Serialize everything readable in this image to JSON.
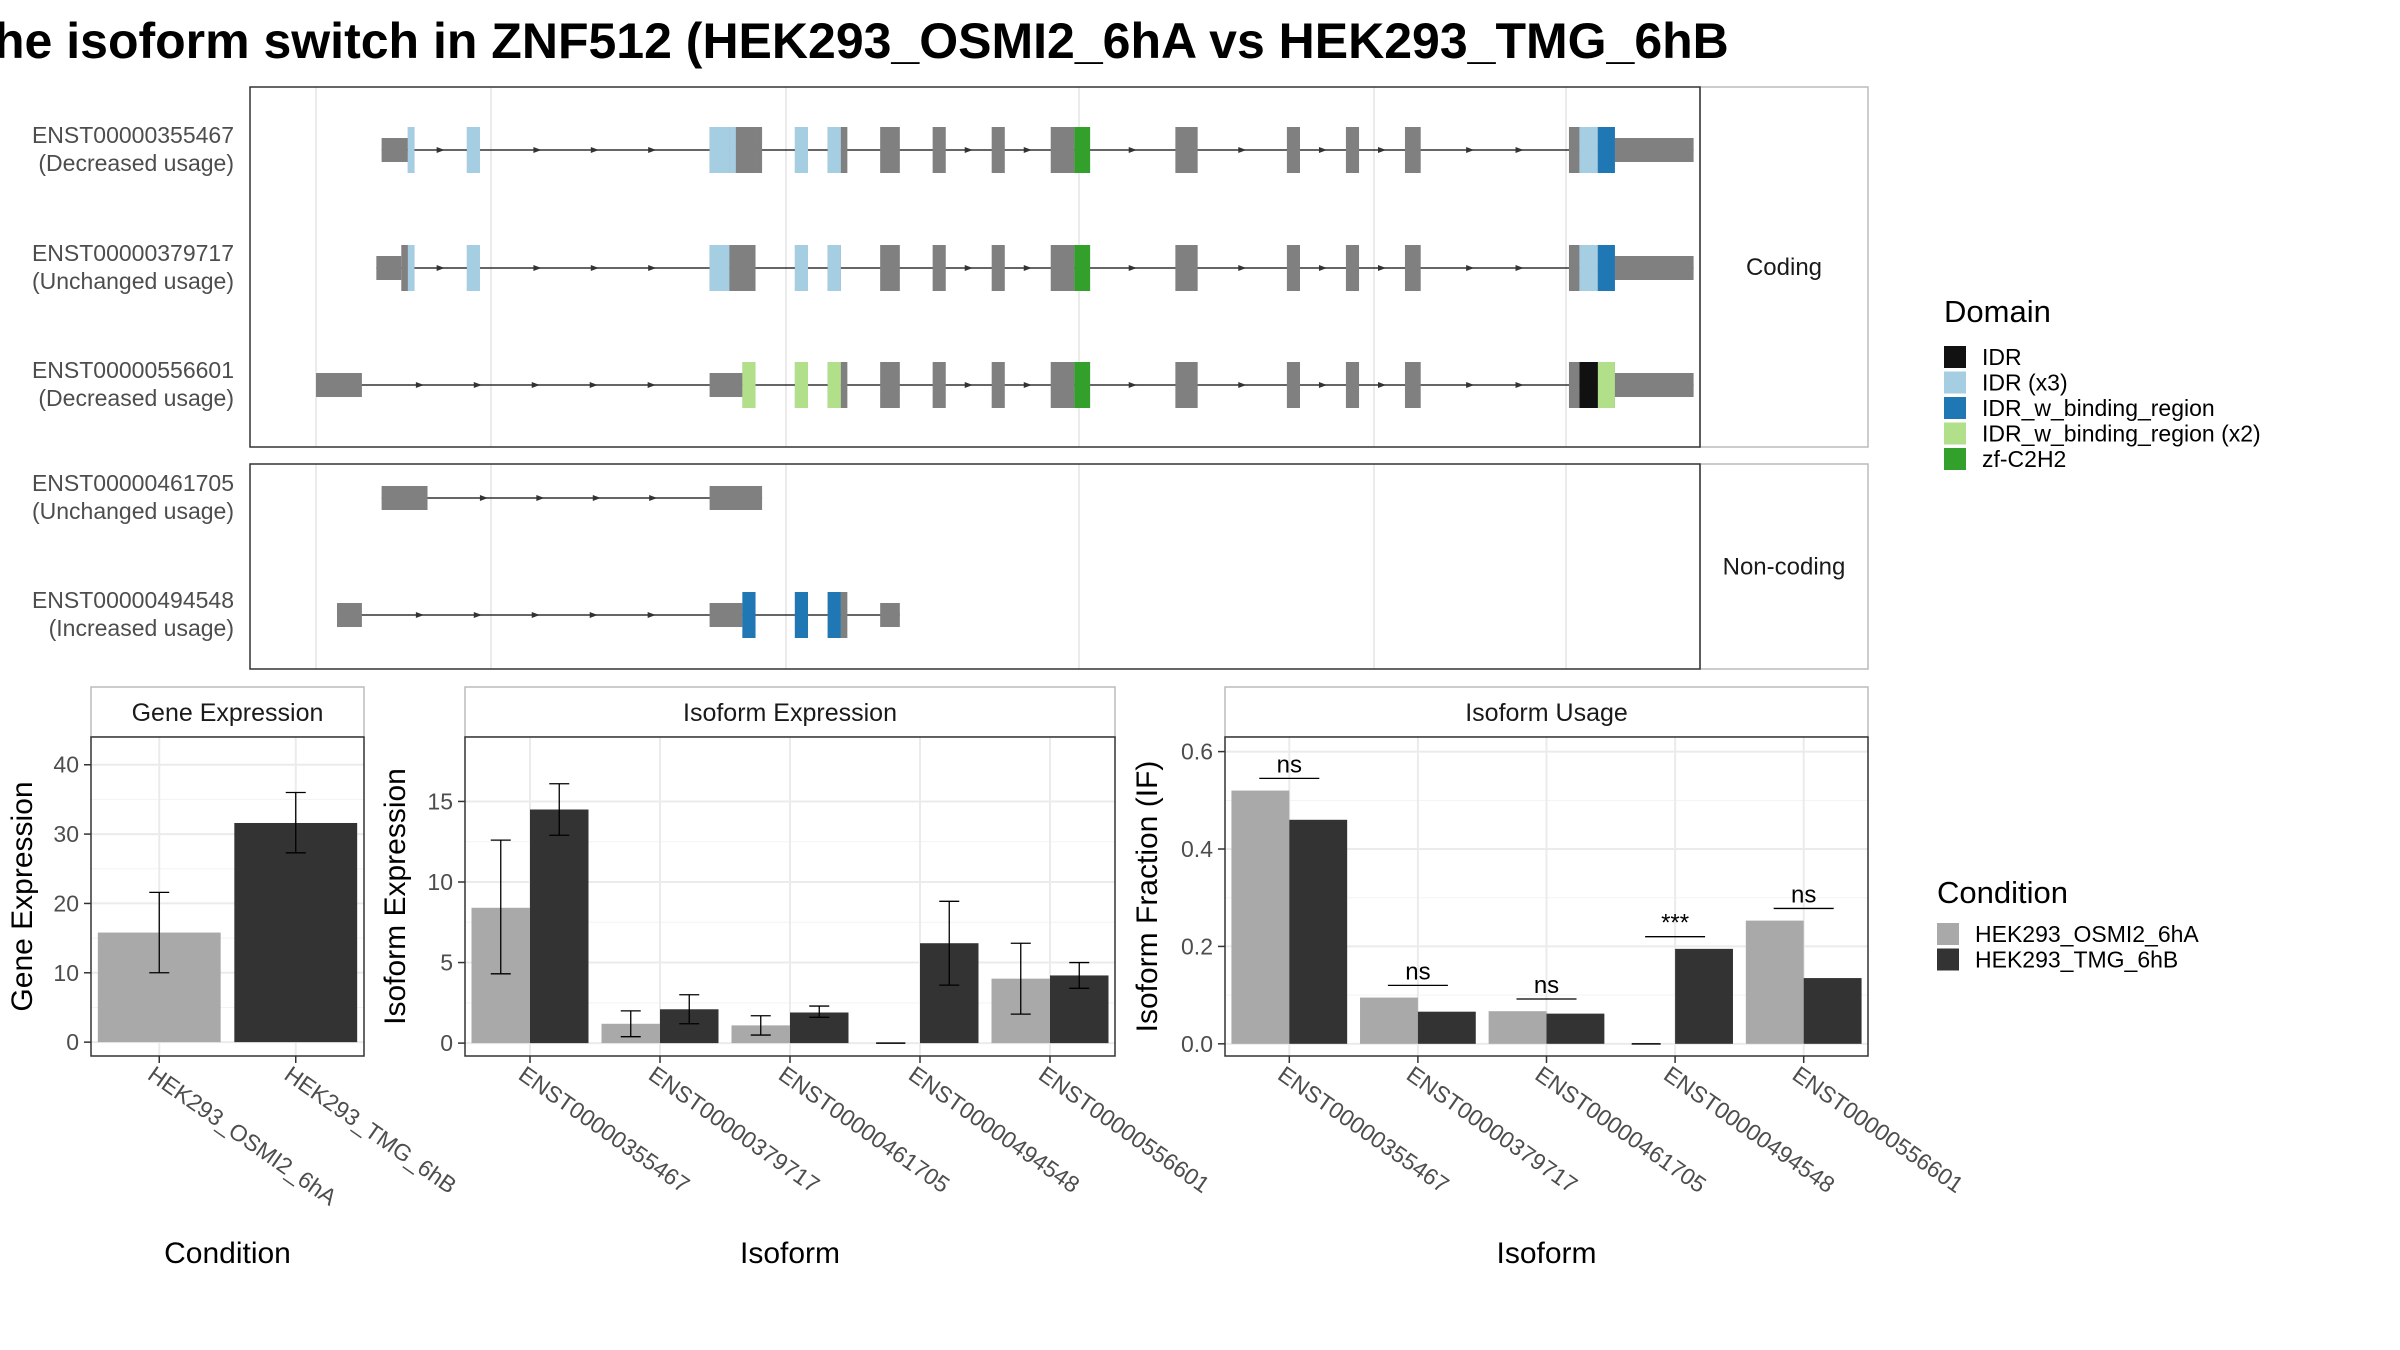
{
  "title": "he isoform switch in ZNF512 (HEK293_OSMI2_6hA vs HEK293_TMG_6hB",
  "colors": {
    "exon": "#808080",
    "intron": "#333333",
    "IDR": "#111111",
    "IDR (x3)": "#a6cee3",
    "IDR_w_binding_region": "#1f78b4",
    "IDR_w_binding_region (x2)": "#b2df8a",
    "zf-C2H2": "#33a02c",
    "condA": "#a9a9a9",
    "condB": "#333333",
    "panel_border": "#333333",
    "strip_border": "#bbbbbb",
    "grid": "#ebebeb"
  },
  "chart_data": [
    {
      "type": "other",
      "name": "transcript structures",
      "groups": [
        {
          "label": "Coding",
          "transcripts": [
            {
              "id": "ENST00000355467",
              "usage": "(Decreased usage)",
              "exons": [
                [
                  0.05,
                  0.07
                ],
                [
                  0.07,
                  0.075
                ],
                [
                  0.115,
                  0.125
                ],
                [
                  0.3,
                  0.315
                ],
                [
                  0.315,
                  0.335
                ],
                [
                  0.335,
                  0.34
                ],
                [
                  0.365,
                  0.375
                ],
                [
                  0.39,
                  0.4
                ],
                [
                  0.4,
                  0.405
                ],
                [
                  0.43,
                  0.445
                ],
                [
                  0.47,
                  0.48
                ],
                [
                  0.515,
                  0.525
                ],
                [
                  0.56,
                  0.578
                ],
                [
                  0.578,
                  0.59
                ],
                [
                  0.655,
                  0.672
                ],
                [
                  0.74,
                  0.75
                ],
                [
                  0.785,
                  0.795
                ],
                [
                  0.83,
                  0.842
                ],
                [
                  0.955,
                  0.963
                ],
                [
                  0.963,
                  0.977
                ],
                [
                  0.977,
                  0.99
                ],
                [
                  0.99,
                  1.05
                ]
              ],
              "exon_heights": [
                "s",
                "t",
                "t",
                "t",
                "t",
                "t",
                "t",
                "t",
                "t",
                "t",
                "t",
                "t",
                "t",
                "t",
                "t",
                "t",
                "t",
                "t",
                "t",
                "t",
                "t",
                "s"
              ],
              "domains": [
                {
                  "name": "IDR (x3)",
                  "ranges": [
                    [
                      0.07,
                      0.075
                    ],
                    [
                      0.115,
                      0.125
                    ],
                    [
                      0.3,
                      0.315
                    ],
                    [
                      0.315,
                      0.32
                    ],
                    [
                      0.365,
                      0.375
                    ],
                    [
                      0.39,
                      0.4
                    ],
                    [
                      0.963,
                      0.977
                    ]
                  ]
                },
                {
                  "name": "IDR_w_binding_region",
                  "ranges": [
                    [
                      0.977,
                      0.99
                    ]
                  ]
                },
                {
                  "name": "zf-C2H2",
                  "ranges": [
                    [
                      0.578,
                      0.59
                    ]
                  ]
                }
              ]
            },
            {
              "id": "ENST00000379717",
              "usage": "(Unchanged usage)",
              "exons": [
                [
                  0.046,
                  0.065
                ],
                [
                  0.065,
                  0.075
                ],
                [
                  0.115,
                  0.125
                ],
                [
                  0.3,
                  0.315
                ],
                [
                  0.315,
                  0.335
                ],
                [
                  0.365,
                  0.375
                ],
                [
                  0.39,
                  0.4
                ],
                [
                  0.43,
                  0.445
                ],
                [
                  0.47,
                  0.48
                ],
                [
                  0.515,
                  0.525
                ],
                [
                  0.56,
                  0.578
                ],
                [
                  0.578,
                  0.59
                ],
                [
                  0.655,
                  0.672
                ],
                [
                  0.74,
                  0.75
                ],
                [
                  0.785,
                  0.795
                ],
                [
                  0.83,
                  0.842
                ],
                [
                  0.955,
                  0.963
                ],
                [
                  0.963,
                  0.977
                ],
                [
                  0.977,
                  0.99
                ],
                [
                  0.99,
                  1.05
                ]
              ],
              "exon_heights": [
                "s",
                "t",
                "t",
                "t",
                "t",
                "t",
                "t",
                "t",
                "t",
                "t",
                "t",
                "t",
                "t",
                "t",
                "t",
                "t",
                "t",
                "t",
                "t",
                "s"
              ],
              "domains": [
                {
                  "name": "IDR (x3)",
                  "ranges": [
                    [
                      0.07,
                      0.075
                    ],
                    [
                      0.115,
                      0.125
                    ],
                    [
                      0.3,
                      0.315
                    ],
                    [
                      0.365,
                      0.375
                    ],
                    [
                      0.39,
                      0.4
                    ],
                    [
                      0.963,
                      0.977
                    ]
                  ]
                },
                {
                  "name": "IDR_w_binding_region",
                  "ranges": [
                    [
                      0.977,
                      0.99
                    ]
                  ]
                },
                {
                  "name": "zf-C2H2",
                  "ranges": [
                    [
                      0.578,
                      0.59
                    ]
                  ]
                }
              ]
            },
            {
              "id": "ENST00000556601",
              "usage": "(Decreased usage)",
              "exons": [
                [
                  0.0,
                  0.035
                ],
                [
                  0.3,
                  0.325
                ],
                [
                  0.325,
                  0.335
                ],
                [
                  0.365,
                  0.375
                ],
                [
                  0.39,
                  0.4
                ],
                [
                  0.4,
                  0.405
                ],
                [
                  0.43,
                  0.445
                ],
                [
                  0.47,
                  0.48
                ],
                [
                  0.515,
                  0.525
                ],
                [
                  0.56,
                  0.578
                ],
                [
                  0.578,
                  0.59
                ],
                [
                  0.655,
                  0.672
                ],
                [
                  0.74,
                  0.75
                ],
                [
                  0.785,
                  0.795
                ],
                [
                  0.83,
                  0.842
                ],
                [
                  0.955,
                  0.963
                ],
                [
                  0.963,
                  0.977
                ],
                [
                  0.977,
                  0.99
                ],
                [
                  0.99,
                  1.05
                ]
              ],
              "exon_heights": [
                "s",
                "s",
                "t",
                "t",
                "t",
                "t",
                "t",
                "t",
                "t",
                "t",
                "t",
                "t",
                "t",
                "t",
                "t",
                "t",
                "t",
                "t",
                "s"
              ],
              "domains": [
                {
                  "name": "IDR_w_binding_region (x2)",
                  "ranges": [
                    [
                      0.325,
                      0.335
                    ],
                    [
                      0.365,
                      0.375
                    ],
                    [
                      0.39,
                      0.4
                    ],
                    [
                      0.977,
                      0.99
                    ]
                  ]
                },
                {
                  "name": "IDR",
                  "ranges": [
                    [
                      0.963,
                      0.977
                    ]
                  ]
                },
                {
                  "name": "zf-C2H2",
                  "ranges": [
                    [
                      0.578,
                      0.59
                    ]
                  ]
                }
              ]
            }
          ]
        },
        {
          "label": "Non-coding",
          "transcripts": [
            {
              "id": "ENST00000461705",
              "usage": "(Unchanged usage)",
              "exons": [
                [
                  0.05,
                  0.085
                ],
                [
                  0.3,
                  0.34
                ]
              ],
              "exon_heights": [
                "s",
                "s"
              ],
              "domains": []
            },
            {
              "id": "ENST00000494548",
              "usage": "(Increased usage)",
              "exons": [
                [
                  0.016,
                  0.035
                ],
                [
                  0.3,
                  0.325
                ],
                [
                  0.325,
                  0.335
                ],
                [
                  0.365,
                  0.375
                ],
                [
                  0.39,
                  0.4
                ],
                [
                  0.4,
                  0.405
                ],
                [
                  0.43,
                  0.445
                ]
              ],
              "exon_heights": [
                "s",
                "s",
                "t",
                "t",
                "t",
                "t",
                "s"
              ],
              "domains": [
                {
                  "name": "IDR_w_binding_region",
                  "ranges": [
                    [
                      0.325,
                      0.335
                    ],
                    [
                      0.365,
                      0.375
                    ],
                    [
                      0.39,
                      0.4
                    ]
                  ]
                }
              ]
            }
          ]
        }
      ],
      "legend": {
        "title": "Domain",
        "items": [
          "IDR",
          "IDR (x3)",
          "IDR_w_binding_region",
          "IDR_w_binding_region (x2)",
          "zf-C2H2"
        ]
      }
    },
    {
      "type": "bar",
      "strip": "Gene Expression",
      "ylabel": "Gene Expression",
      "xlabel": "Condition",
      "ylim": [
        -2,
        44
      ],
      "yticks": [
        0,
        10,
        20,
        30,
        40
      ],
      "categories": [
        "HEK293_OSMI2_6hA",
        "HEK293_TMG_6hB"
      ],
      "values": [
        15.8,
        31.6
      ],
      "errors": [
        [
          10.0,
          21.6
        ],
        [
          27.3,
          36.0
        ]
      ]
    },
    {
      "type": "bar",
      "strip": "Isoform Expression",
      "ylabel": "Isoform Expression",
      "xlabel": "Isoform",
      "ylim": [
        -0.8,
        19.0
      ],
      "yticks": [
        0,
        5,
        10,
        15
      ],
      "categories": [
        "ENST00000355467",
        "ENST00000379717",
        "ENST00000461705",
        "ENST00000494548",
        "ENST00000556601"
      ],
      "series": [
        {
          "name": "HEK293_OSMI2_6hA",
          "values": [
            8.4,
            1.2,
            1.1,
            0.0,
            4.0
          ],
          "errors": [
            [
              4.3,
              12.6
            ],
            [
              0.4,
              2.0
            ],
            [
              0.5,
              1.7
            ],
            [
              0.0,
              0.0
            ],
            [
              1.8,
              6.2
            ]
          ]
        },
        {
          "name": "HEK293_TMG_6hB",
          "values": [
            14.5,
            2.1,
            1.9,
            6.2,
            4.2
          ],
          "errors": [
            [
              12.9,
              16.1
            ],
            [
              1.2,
              3.0
            ],
            [
              1.6,
              2.3
            ],
            [
              3.6,
              8.8
            ],
            [
              3.4,
              5.0
            ]
          ]
        }
      ]
    },
    {
      "type": "bar",
      "strip": "Isoform Usage",
      "ylabel": "Isoform Fraction (IF)",
      "xlabel": "Isoform",
      "ylim": [
        -0.025,
        0.63
      ],
      "yticks": [
        0.0,
        0.2,
        0.4,
        0.6
      ],
      "ytick_labels": [
        "0.0",
        "0.2",
        "0.4",
        "0.6"
      ],
      "categories": [
        "ENST00000355467",
        "ENST00000379717",
        "ENST00000461705",
        "ENST00000494548",
        "ENST00000556601"
      ],
      "series": [
        {
          "name": "HEK293_OSMI2_6hA",
          "values": [
            0.52,
            0.095,
            0.067,
            0.0,
            0.253
          ]
        },
        {
          "name": "HEK293_TMG_6hB",
          "values": [
            0.46,
            0.066,
            0.062,
            0.195,
            0.135
          ]
        }
      ],
      "annotations": [
        {
          "label": "ns",
          "y": 0.545
        },
        {
          "label": "ns",
          "y": 0.12
        },
        {
          "label": "ns",
          "y": 0.092
        },
        {
          "label": "***",
          "y": 0.22
        },
        {
          "label": "ns",
          "y": 0.278
        }
      ]
    }
  ],
  "condition_legend": {
    "title": "Condition",
    "items": [
      "HEK293_OSMI2_6hA",
      "HEK293_TMG_6hB"
    ]
  }
}
